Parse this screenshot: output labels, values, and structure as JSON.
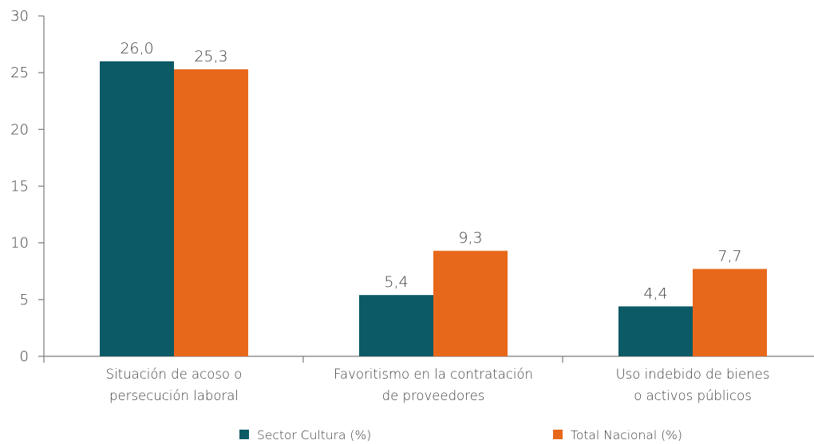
{
  "chart_data": {
    "type": "bar",
    "title": "",
    "xlabel": "",
    "ylabel": "",
    "ylim": [
      0,
      30
    ],
    "yticks": [
      0,
      5,
      10,
      15,
      20,
      25,
      30
    ],
    "grid": false,
    "legend_position": "bottom",
    "categories": [
      [
        "Situación de acoso o",
        "persecución laboral"
      ],
      [
        "Favoritismo en la contratación",
        "de proveedores"
      ],
      [
        "Uso indebido de bienes",
        "o activos públicos"
      ]
    ],
    "series": [
      {
        "name": "Sector Cultura (%)",
        "color": "#0b5a66",
        "values": [
          26.0,
          5.4,
          4.4
        ],
        "labels": [
          "26,0",
          "5,4",
          "4,4"
        ]
      },
      {
        "name": "Total Nacional (%)",
        "color": "#e8681b",
        "values": [
          25.3,
          9.3,
          7.7
        ],
        "labels": [
          "25,3",
          "9,3",
          "7,7"
        ]
      }
    ]
  }
}
